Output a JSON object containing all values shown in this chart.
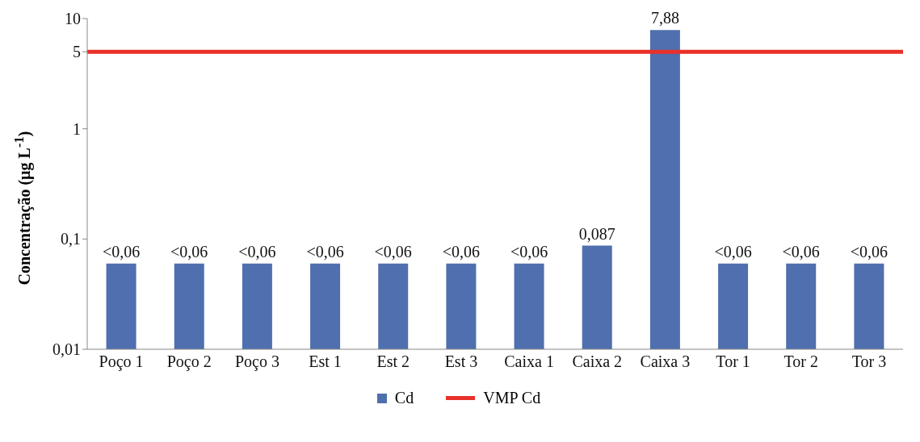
{
  "chart_data": {
    "type": "bar",
    "ylabel": "Concentração (µg L$^{-1}$)",
    "categories": [
      "Poço 1",
      "Poço 2",
      "Poço 3",
      "Est 1",
      "Est 2",
      "Est 3",
      "Caixa 1",
      "Caixa 2",
      "Caixa 3",
      "Tor 1",
      "Tor 2",
      "Tor 3"
    ],
    "series": [
      {
        "name": "Cd",
        "color": "#4f6fae",
        "values": [
          0.06,
          0.06,
          0.06,
          0.06,
          0.06,
          0.06,
          0.06,
          0.087,
          7.88,
          0.06,
          0.06,
          0.06
        ],
        "value_labels": [
          "<0,06",
          "<0,06",
          "<0,06",
          "<0,06",
          "<0,06",
          "<0,06",
          "<0,06",
          "0,087",
          "7,88",
          "<0,06",
          "<0,06",
          "<0,06"
        ]
      }
    ],
    "ref_lines": [
      {
        "axis": "y",
        "value": 5,
        "label": "VMP Cd",
        "color": "#e8312a"
      }
    ],
    "ylim": [
      0.01,
      10
    ],
    "yticks": [
      {
        "value": 0.01,
        "label": "0,01"
      },
      {
        "value": 0.1,
        "label": "0,1"
      },
      1,
      5,
      10
    ],
    "log": true,
    "grid": false,
    "legend": "bottom"
  }
}
